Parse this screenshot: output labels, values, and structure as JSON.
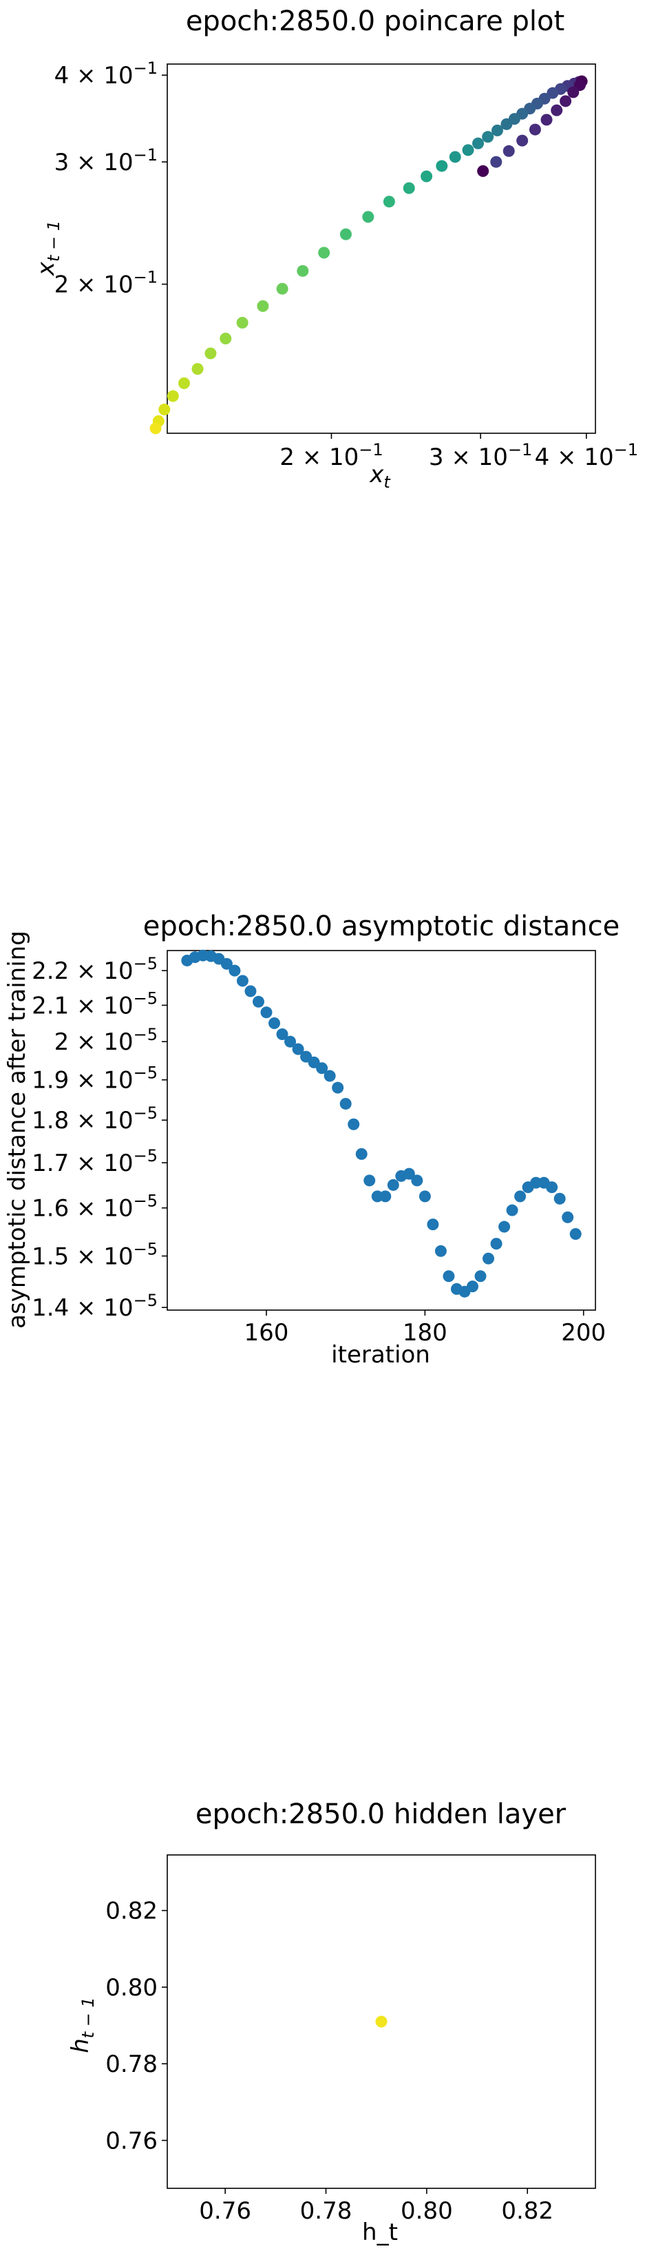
{
  "charts": [
    {
      "id": "poincare",
      "chart_data": {
        "type": "scatter",
        "title": "epoch:2850.0 poincare plot",
        "xlabel": "x_t",
        "ylabel": "x_{t-1}",
        "xscale": "log",
        "yscale": "log",
        "xlim": [
          0.128,
          0.41
        ],
        "ylim": [
          0.122,
          0.415
        ],
        "x_ticks": [
          {
            "value": 0.2,
            "mantissa": "2",
            "exponent": "−1"
          },
          {
            "value": 0.3,
            "mantissa": "3",
            "exponent": "−1"
          },
          {
            "value": 0.4,
            "mantissa": "4",
            "exponent": "−1"
          }
        ],
        "y_ticks": [
          {
            "value": 0.2,
            "mantissa": "2",
            "exponent": "−1"
          },
          {
            "value": 0.3,
            "mantissa": "3",
            "exponent": "−1"
          },
          {
            "value": 0.4,
            "mantissa": "4",
            "exponent": "−1"
          }
        ],
        "colormap": "viridis",
        "points": [
          {
            "x": 0.392,
            "y": 0.391,
            "color": "#482878"
          },
          {
            "x": 0.387,
            "y": 0.389,
            "color": "#46307e"
          },
          {
            "x": 0.38,
            "y": 0.386,
            "color": "#443a83"
          },
          {
            "x": 0.373,
            "y": 0.382,
            "color": "#414487"
          },
          {
            "x": 0.365,
            "y": 0.377,
            "color": "#3e4c8a"
          },
          {
            "x": 0.357,
            "y": 0.37,
            "color": "#3b528b"
          },
          {
            "x": 0.35,
            "y": 0.364,
            "color": "#38598c"
          },
          {
            "x": 0.343,
            "y": 0.358,
            "color": "#355f8d"
          },
          {
            "x": 0.336,
            "y": 0.352,
            "color": "#31688e"
          },
          {
            "x": 0.329,
            "y": 0.346,
            "color": "#2e6f8e"
          },
          {
            "x": 0.322,
            "y": 0.34,
            "color": "#2c728e"
          },
          {
            "x": 0.314,
            "y": 0.333,
            "color": "#297a8e"
          },
          {
            "x": 0.306,
            "y": 0.326,
            "color": "#26828e"
          },
          {
            "x": 0.298,
            "y": 0.319,
            "color": "#24868e"
          },
          {
            "x": 0.29,
            "y": 0.312,
            "color": "#21918c"
          },
          {
            "x": 0.28,
            "y": 0.305,
            "color": "#1f988b"
          },
          {
            "x": 0.27,
            "y": 0.296,
            "color": "#1fa088"
          },
          {
            "x": 0.259,
            "y": 0.286,
            "color": "#22a785"
          },
          {
            "x": 0.247,
            "y": 0.275,
            "color": "#28ae80"
          },
          {
            "x": 0.234,
            "y": 0.263,
            "color": "#2fb47c"
          },
          {
            "x": 0.221,
            "y": 0.25,
            "color": "#3bbb75"
          },
          {
            "x": 0.208,
            "y": 0.236,
            "color": "#44bf70"
          },
          {
            "x": 0.196,
            "y": 0.222,
            "color": "#56c667"
          },
          {
            "x": 0.185,
            "y": 0.209,
            "color": "#5ec962"
          },
          {
            "x": 0.175,
            "y": 0.197,
            "color": "#6ccd5a"
          },
          {
            "x": 0.166,
            "y": 0.186,
            "color": "#7ad151"
          },
          {
            "x": 0.157,
            "y": 0.176,
            "color": "#89d548"
          },
          {
            "x": 0.15,
            "y": 0.167,
            "color": "#95d840"
          },
          {
            "x": 0.144,
            "y": 0.159,
            "color": "#a2da37"
          },
          {
            "x": 0.139,
            "y": 0.151,
            "color": "#b0dd2f"
          },
          {
            "x": 0.134,
            "y": 0.144,
            "color": "#bddf26"
          },
          {
            "x": 0.13,
            "y": 0.138,
            "color": "#cae11f"
          },
          {
            "x": 0.127,
            "y": 0.132,
            "color": "#d8e219"
          },
          {
            "x": 0.125,
            "y": 0.127,
            "color": "#e5e419"
          },
          {
            "x": 0.124,
            "y": 0.124,
            "color": "#f2e51d"
          },
          {
            "x": 0.395,
            "y": 0.392,
            "color": "#440154"
          },
          {
            "x": 0.393,
            "y": 0.387,
            "color": "#46085c"
          },
          {
            "x": 0.386,
            "y": 0.378,
            "color": "#471063"
          },
          {
            "x": 0.378,
            "y": 0.367,
            "color": "#48186a"
          },
          {
            "x": 0.369,
            "y": 0.356,
            "color": "#482071"
          },
          {
            "x": 0.359,
            "y": 0.345,
            "color": "#482576"
          },
          {
            "x": 0.348,
            "y": 0.334,
            "color": "#472d7b"
          },
          {
            "x": 0.336,
            "y": 0.322,
            "color": "#46337f"
          },
          {
            "x": 0.324,
            "y": 0.311,
            "color": "#453882"
          },
          {
            "x": 0.313,
            "y": 0.3,
            "color": "#424086"
          },
          {
            "x": 0.302,
            "y": 0.291,
            "color": "#440154"
          }
        ]
      }
    },
    {
      "id": "asymptotic",
      "chart_data": {
        "type": "scatter",
        "title": "epoch:2850.0 asymptotic distance",
        "xlabel": "iteration",
        "ylabel": "asymptotic distance after training",
        "yscale": "log",
        "xlim": [
          147.5,
          201.5
        ],
        "ylim": [
          1.395e-05,
          2.26e-05
        ],
        "color": "#1f77b4",
        "x_ticks": [
          160,
          180,
          200
        ],
        "y_ticks": [
          {
            "value": 1.4e-05,
            "mantissa": "1.4",
            "exponent": "−5"
          },
          {
            "value": 1.5e-05,
            "mantissa": "1.5",
            "exponent": "−5"
          },
          {
            "value": 1.6e-05,
            "mantissa": "1.6",
            "exponent": "−5"
          },
          {
            "value": 1.7e-05,
            "mantissa": "1.7",
            "exponent": "−5"
          },
          {
            "value": 1.8e-05,
            "mantissa": "1.8",
            "exponent": "−5"
          },
          {
            "value": 1.9e-05,
            "mantissa": "1.9",
            "exponent": "−5"
          },
          {
            "value": 2e-05,
            "mantissa": "2",
            "exponent": "−5"
          },
          {
            "value": 2.1e-05,
            "mantissa": "2.1",
            "exponent": "−5"
          },
          {
            "value": 2.2e-05,
            "mantissa": "2.2",
            "exponent": "−5"
          }
        ],
        "x": [
          150,
          151,
          152,
          153,
          154,
          155,
          156,
          157,
          158,
          159,
          160,
          161,
          162,
          163,
          164,
          165,
          166,
          167,
          168,
          169,
          170,
          171,
          172,
          173,
          174,
          175,
          176,
          177,
          178,
          179,
          180,
          181,
          182,
          183,
          184,
          185,
          186,
          187,
          188,
          189,
          190,
          191,
          192,
          193,
          194,
          195,
          196,
          197,
          198,
          199
        ],
        "y": [
          2.23e-05,
          2.24e-05,
          2.245e-05,
          2.243e-05,
          2.235e-05,
          2.22e-05,
          2.2e-05,
          2.17e-05,
          2.14e-05,
          2.11e-05,
          2.08e-05,
          2.05e-05,
          2.02e-05,
          2e-05,
          1.98e-05,
          1.96e-05,
          1.945e-05,
          1.93e-05,
          1.91e-05,
          1.88e-05,
          1.84e-05,
          1.79e-05,
          1.72e-05,
          1.66e-05,
          1.625e-05,
          1.625e-05,
          1.65e-05,
          1.67e-05,
          1.675e-05,
          1.66e-05,
          1.625e-05,
          1.565e-05,
          1.51e-05,
          1.46e-05,
          1.435e-05,
          1.43e-05,
          1.44e-05,
          1.46e-05,
          1.495e-05,
          1.525e-05,
          1.56e-05,
          1.595e-05,
          1.625e-05,
          1.645e-05,
          1.655e-05,
          1.655e-05,
          1.645e-05,
          1.62e-05,
          1.58e-05,
          1.545e-05
        ]
      }
    },
    {
      "id": "hidden",
      "chart_data": {
        "type": "scatter",
        "title": "epoch:2850.0 hidden layer",
        "xlabel": "h_t",
        "ylabel": "h_{t-1}",
        "xlim": [
          0.7485,
          0.8335
        ],
        "ylim": [
          0.7475,
          0.8345
        ],
        "x_ticks": [
          "0.76",
          "0.78",
          "0.80",
          "0.82"
        ],
        "y_ticks": [
          "0.76",
          "0.78",
          "0.80",
          "0.82"
        ],
        "points": [
          {
            "x": 0.791,
            "y": 0.791,
            "color": "#f2e51d"
          }
        ]
      }
    }
  ]
}
